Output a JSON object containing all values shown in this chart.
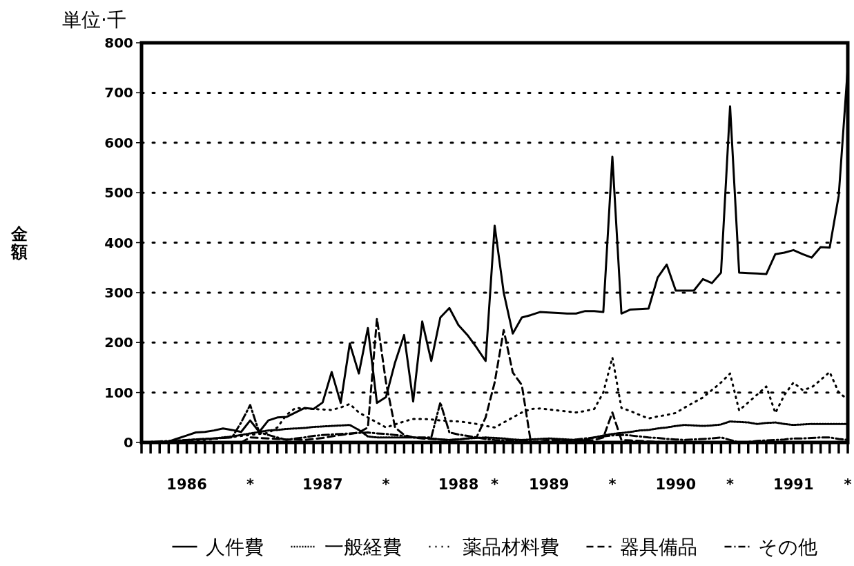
{
  "chart_data": {
    "type": "line",
    "ylabel": "金額",
    "annotations": [
      "単位·千"
    ],
    "ylim": [
      0,
      800
    ],
    "yticks": [
      0,
      100,
      200,
      300,
      400,
      500,
      600,
      700,
      800
    ],
    "categories": [
      null,
      null,
      null,
      null,
      null,
      "1986",
      null,
      null,
      null,
      null,
      null,
      null,
      "*",
      null,
      null,
      null,
      null,
      null,
      null,
      null,
      "1987",
      null,
      null,
      null,
      null,
      null,
      null,
      "*",
      null,
      null,
      null,
      null,
      null,
      null,
      null,
      "1988",
      null,
      null,
      null,
      "*",
      null,
      null,
      null,
      null,
      null,
      "1989",
      null,
      null,
      null,
      null,
      null,
      null,
      "*",
      null,
      null,
      null,
      null,
      null,
      null,
      "1990",
      null,
      null,
      null,
      null,
      null,
      "*",
      null,
      null,
      null,
      null,
      null,
      null,
      "1991",
      null,
      null,
      null,
      null,
      null,
      "*"
    ],
    "grid": "y",
    "legend": "bottom",
    "marker": "none",
    "series": [
      {
        "name": "人件費",
        "color": "#000000",
        "line_style": "solid",
        "values": [
          0,
          0,
          0,
          2,
          8,
          14,
          20,
          21,
          24,
          28,
          25,
          21,
          44,
          21,
          44,
          50,
          51,
          60,
          69,
          67,
          80,
          141,
          79,
          198,
          138,
          229,
          79,
          91,
          160,
          215,
          82,
          242,
          163,
          250,
          269,
          235,
          215,
          190,
          163,
          434,
          300,
          218,
          250,
          255,
          261,
          260,
          259,
          258,
          258,
          263,
          263,
          261,
          572,
          258,
          266,
          267,
          268,
          330,
          356,
          304,
          304,
          304,
          327,
          319,
          340,
          673,
          340,
          339,
          338,
          337,
          377,
          380,
          385,
          377,
          370,
          391,
          390,
          494,
          751
        ]
      },
      {
        "name": "一般経費",
        "color": "#000000",
        "line_style": "dotted",
        "values": [
          0,
          0,
          0,
          2,
          3,
          5,
          6,
          7,
          8,
          10,
          12,
          15,
          18,
          21,
          24,
          25,
          27,
          28,
          29,
          31,
          32,
          33,
          34,
          35,
          25,
          12,
          10,
          10,
          10,
          10,
          10,
          9,
          8,
          6,
          5,
          6,
          8,
          9,
          10,
          9,
          8,
          6,
          5,
          6,
          7,
          8,
          7,
          6,
          5,
          5,
          10,
          14,
          17,
          19,
          21,
          24,
          25,
          28,
          30,
          33,
          35,
          34,
          33,
          34,
          36,
          42,
          41,
          40,
          37,
          39,
          40,
          37,
          35,
          36,
          37,
          37,
          37,
          37,
          37
        ]
      },
      {
        "name": "薬品材料費",
        "color": "#000000",
        "line_style": "loosely dotted",
        "values": [
          0,
          1,
          1,
          2,
          3,
          4,
          4,
          5,
          7,
          9,
          11,
          13,
          15,
          17,
          19,
          30,
          55,
          69,
          68,
          67,
          66,
          65,
          70,
          77,
          60,
          50,
          40,
          30,
          36,
          42,
          47,
          47,
          46,
          44,
          43,
          42,
          40,
          37,
          33,
          30,
          40,
          50,
          60,
          67,
          68,
          66,
          64,
          62,
          60,
          63,
          67,
          100,
          170,
          69,
          63,
          55,
          48,
          52,
          55,
          59,
          70,
          80,
          90,
          105,
          120,
          138,
          64,
          80,
          96,
          112,
          59,
          95,
          120,
          105,
          110,
          125,
          141,
          100,
          86
        ]
      },
      {
        "name": "器具備品",
        "color": "#000000",
        "line_style": "dashed",
        "values": [
          0,
          0,
          0,
          0,
          0,
          0,
          0,
          0,
          0,
          0,
          0,
          0,
          10,
          9,
          8,
          7,
          6,
          6,
          5,
          7,
          9,
          12,
          15,
          17,
          20,
          30,
          248,
          120,
          30,
          15,
          10,
          8,
          7,
          6,
          5,
          6,
          8,
          10,
          50,
          120,
          225,
          140,
          115,
          0,
          2,
          5,
          4,
          4,
          3,
          3,
          5,
          10,
          60,
          5,
          4,
          3,
          2,
          1,
          0,
          0,
          0,
          0,
          0,
          0,
          0,
          0,
          0,
          0,
          0,
          0,
          0,
          0,
          0,
          0,
          0,
          0,
          0,
          0,
          0
        ]
      },
      {
        "name": "その他",
        "color": "#000000",
        "line_style": "dashdot",
        "values": [
          0,
          1,
          2,
          3,
          4,
          5,
          6,
          7,
          8,
          9,
          10,
          40,
          75,
          20,
          15,
          10,
          5,
          8,
          10,
          13,
          15,
          16,
          17,
          18,
          19,
          20,
          18,
          17,
          15,
          13,
          10,
          10,
          10,
          80,
          20,
          16,
          13,
          10,
          7,
          5,
          4,
          4,
          3,
          2,
          1,
          0,
          2,
          4,
          6,
          8,
          10,
          12,
          14,
          15,
          14,
          12,
          10,
          9,
          7,
          6,
          5,
          6,
          7,
          8,
          10,
          5,
          0,
          1,
          3,
          4,
          5,
          6,
          8,
          8,
          9,
          10,
          10,
          7,
          5
        ]
      }
    ]
  }
}
